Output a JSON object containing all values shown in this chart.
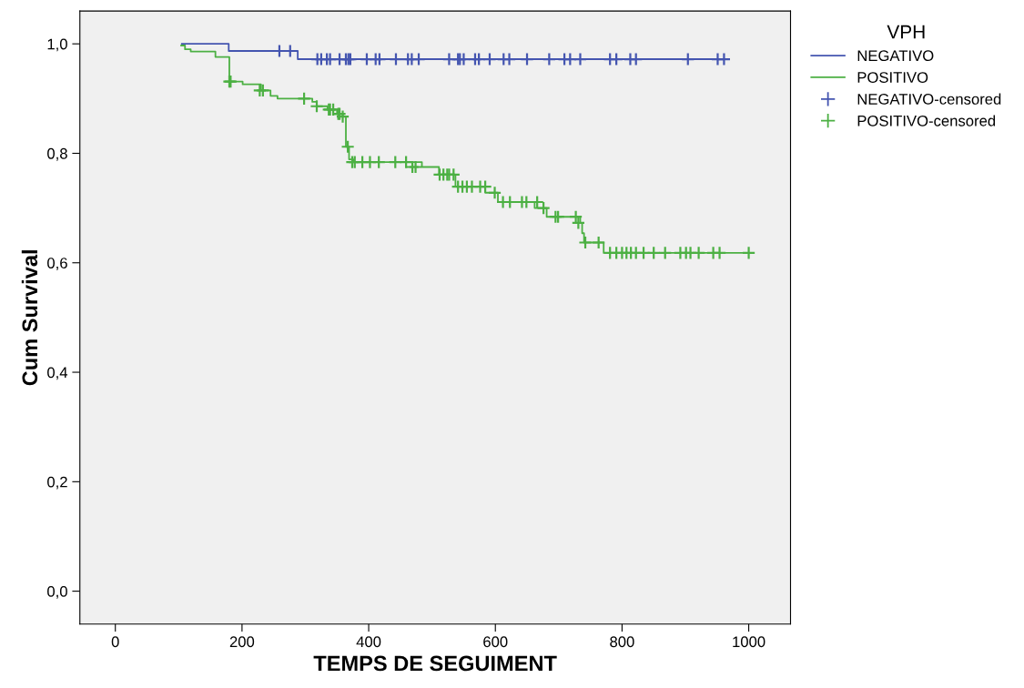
{
  "chart_data": {
    "type": "step",
    "xlabel": "TEMPS DE SEGUIMENT",
    "ylabel": "Cum Survival",
    "legend_title": "VPH",
    "legend": "right",
    "grid": false,
    "xlim": [
      -56,
      1066
    ],
    "ylim": [
      -0.06,
      1.06
    ],
    "xticks": [
      0,
      200,
      400,
      600,
      800,
      1000
    ],
    "yticks": [
      {
        "value": 0.0,
        "label": "0,0"
      },
      {
        "value": 0.2,
        "label": "0,2"
      },
      {
        "value": 0.4,
        "label": "0,4"
      },
      {
        "value": 0.6,
        "label": "0,6"
      },
      {
        "value": 0.8,
        "label": "0,8"
      },
      {
        "value": 1.0,
        "label": "1,0"
      }
    ],
    "series": [
      {
        "name": "NEGATIVO",
        "color": "#4455b0",
        "x": [
          105,
          179,
          288,
          968
        ],
        "values": [
          1.0,
          0.987,
          0.972,
          0.972
        ]
      },
      {
        "name": "POSITIVO",
        "color": "#4cb043",
        "x": [
          104,
          110,
          119,
          158,
          180,
          201,
          230,
          245,
          256,
          311,
          318,
          335,
          350,
          359,
          364,
          369,
          376,
          484,
          511,
          537,
          584,
          604,
          662,
          681,
          734,
          737,
          740,
          771,
          1000
        ],
        "values": [
          0.997,
          0.99,
          0.986,
          0.976,
          0.931,
          0.926,
          0.915,
          0.905,
          0.9,
          0.894,
          0.886,
          0.88,
          0.872,
          0.867,
          0.812,
          0.789,
          0.784,
          0.775,
          0.761,
          0.739,
          0.728,
          0.711,
          0.7,
          0.684,
          0.673,
          0.654,
          0.637,
          0.618,
          0.618
        ]
      },
      {
        "name": "NEGATIVO-censored",
        "type": "scatter",
        "marker": "cross",
        "color": "#4455b0",
        "x": [
          259,
          276,
          319,
          325,
          334,
          339,
          354,
          364,
          368,
          371,
          397,
          411,
          417,
          443,
          462,
          468,
          479,
          527,
          541,
          544,
          550,
          568,
          574,
          591,
          613,
          622,
          650,
          685,
          709,
          718,
          734,
          781,
          791,
          813,
          822,
          904,
          951,
          961
        ],
        "values": [
          0.987,
          0.987,
          0.972,
          0.972,
          0.972,
          0.972,
          0.972,
          0.972,
          0.972,
          0.972,
          0.972,
          0.972,
          0.972,
          0.972,
          0.972,
          0.972,
          0.972,
          0.972,
          0.972,
          0.972,
          0.972,
          0.972,
          0.972,
          0.972,
          0.972,
          0.972,
          0.972,
          0.972,
          0.972,
          0.972,
          0.972,
          0.972,
          0.972,
          0.972,
          0.972,
          0.972,
          0.972,
          0.972
        ]
      },
      {
        "name": "POSITIVO-censored",
        "type": "scatter",
        "marker": "cross",
        "color": "#4cb043",
        "x": [
          180,
          182,
          228,
          233,
          298,
          318,
          337,
          339,
          344,
          352,
          354,
          359,
          367,
          374,
          378,
          390,
          402,
          416,
          442,
          459,
          469,
          474,
          512,
          518,
          524,
          527,
          534,
          541,
          548,
          555,
          563,
          576,
          584,
          599,
          612,
          623,
          642,
          649,
          666,
          676,
          695,
          699,
          727,
          731,
          742,
          763,
          781,
          791,
          800,
          807,
          814,
          822,
          834,
          850,
          868,
          892,
          901,
          908,
          921,
          944,
          954,
          1000
        ],
        "values": [
          0.931,
          0.931,
          0.915,
          0.915,
          0.9,
          0.886,
          0.88,
          0.88,
          0.88,
          0.872,
          0.872,
          0.867,
          0.812,
          0.784,
          0.784,
          0.784,
          0.784,
          0.784,
          0.784,
          0.784,
          0.775,
          0.775,
          0.761,
          0.761,
          0.761,
          0.761,
          0.761,
          0.739,
          0.739,
          0.739,
          0.739,
          0.739,
          0.739,
          0.728,
          0.711,
          0.711,
          0.711,
          0.711,
          0.711,
          0.7,
          0.684,
          0.684,
          0.684,
          0.673,
          0.637,
          0.637,
          0.618,
          0.618,
          0.618,
          0.618,
          0.618,
          0.618,
          0.618,
          0.618,
          0.618,
          0.618,
          0.618,
          0.618,
          0.618,
          0.618,
          0.618,
          0.618
        ]
      }
    ]
  }
}
